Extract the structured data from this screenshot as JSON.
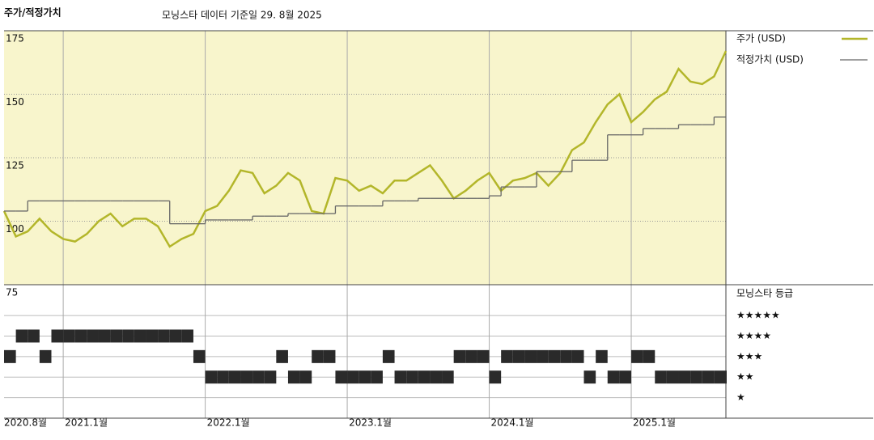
{
  "chart_data": {
    "type": "line",
    "title": "주가/적정가치",
    "subtitle": "모닝스타 데이터 기준일 29. 8월 2025",
    "categories": [
      "2020.8월",
      null,
      null,
      null,
      null,
      "2021.1월",
      null,
      null,
      null,
      null,
      null,
      null,
      null,
      null,
      null,
      null,
      null,
      "2022.1월",
      null,
      null,
      null,
      null,
      null,
      null,
      null,
      null,
      null,
      null,
      null,
      "2023.1월",
      null,
      null,
      null,
      null,
      null,
      null,
      null,
      null,
      null,
      null,
      null,
      "2024.1월",
      null,
      null,
      null,
      null,
      null,
      null,
      null,
      null,
      null,
      null,
      null,
      "2025.1월",
      null,
      null,
      null,
      null,
      null,
      null,
      null,
      null
    ],
    "series": [
      {
        "name": "주가 (USD)",
        "color": "#b3b62a",
        "values": [
          104,
          94,
          96,
          101,
          96,
          93,
          92,
          95,
          100,
          103,
          98,
          101,
          101,
          98,
          90,
          93,
          95,
          104,
          106,
          112,
          120,
          119,
          111,
          114,
          119,
          116,
          104,
          103,
          117,
          116,
          112,
          114,
          111,
          116,
          116,
          119,
          122,
          116,
          109,
          112,
          116,
          119,
          112,
          116,
          117,
          119,
          114,
          119,
          128,
          131,
          139,
          146,
          150,
          139,
          143,
          148,
          151,
          160,
          155,
          154,
          157,
          167
        ]
      },
      {
        "name": "적정가치 (USD)",
        "color": "#666666",
        "step": true,
        "values": [
          104,
          104,
          108,
          108,
          108,
          108,
          108,
          108,
          108,
          108,
          108,
          108,
          108,
          108,
          99,
          99,
          99,
          100.5,
          100.5,
          100.5,
          100.5,
          102,
          102,
          102,
          103,
          103,
          103,
          103,
          106,
          106,
          106,
          106,
          108,
          108,
          108,
          109,
          109,
          109,
          109,
          109,
          109,
          110,
          113.5,
          113.5,
          113.5,
          119.5,
          119.5,
          119.5,
          124,
          124,
          124,
          134,
          134,
          134,
          136.5,
          136.5,
          136.5,
          138,
          138,
          138,
          141,
          141
        ]
      },
      {
        "name": "모닝스타 등급",
        "color": "#2a2a2a",
        "axis": "y2",
        "values": [
          3,
          4,
          4,
          3,
          4,
          4,
          4,
          4,
          4,
          4,
          4,
          4,
          4,
          4,
          4,
          4,
          3,
          2,
          2,
          2,
          2,
          2,
          2,
          3,
          2,
          2,
          3,
          3,
          2,
          2,
          2,
          2,
          3,
          2,
          2,
          2,
          2,
          2,
          3,
          3,
          3,
          2,
          3,
          3,
          3,
          3,
          3,
          3,
          3,
          2,
          3,
          2,
          2,
          3,
          3,
          2,
          2,
          2,
          2,
          2,
          2,
          2
        ]
      }
    ],
    "ylim": [
      75,
      175
    ],
    "yticks": [
      75,
      100,
      125,
      150,
      175
    ],
    "y2lim": [
      0,
      6.5
    ],
    "y2ticks": [
      {
        "value": 5,
        "label": "★★★★★"
      },
      {
        "value": 4,
        "label": "★★★★"
      },
      {
        "value": 3,
        "label": "★★★"
      },
      {
        "value": 2,
        "label": "★★"
      },
      {
        "value": 1,
        "label": "★"
      }
    ],
    "grid": true,
    "legend": "right",
    "background": "#f8f5cc"
  }
}
